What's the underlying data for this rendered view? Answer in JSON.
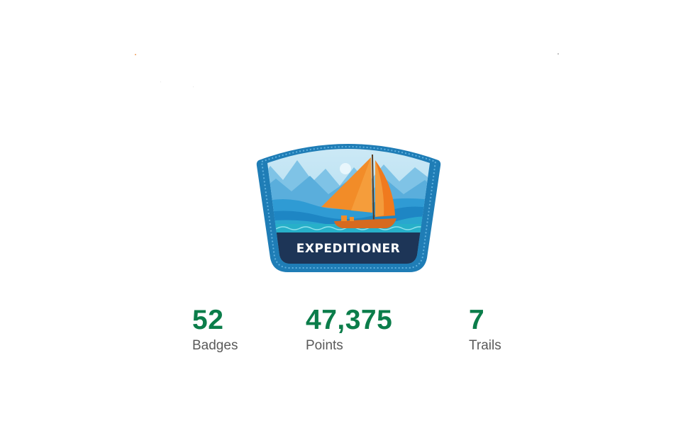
{
  "rank": {
    "name": "EXPEDITIONER",
    "icon": "sailboat-expeditioner-badge-icon"
  },
  "stats": [
    {
      "value": "52",
      "label": "Badges"
    },
    {
      "value": "47,375",
      "label": "Points"
    },
    {
      "value": "7",
      "label": "Trails"
    }
  ],
  "colors": {
    "stat_value": "#0b7d4a",
    "stat_label": "#5a5a5a",
    "badge_border": "#1f7db6",
    "badge_banner": "#1d3557",
    "sail": "#f28c28"
  }
}
